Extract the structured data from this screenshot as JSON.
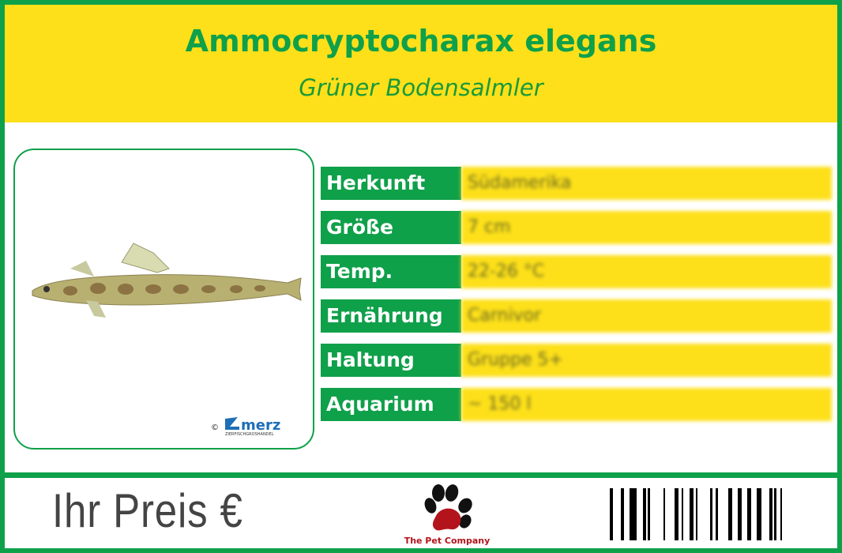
{
  "header": {
    "title": "Ammocryptocharax elegans",
    "subtitle": "Grüner Bodensalmler"
  },
  "photo": {
    "copyright": "©",
    "credit_logo": "merz",
    "credit_tagline": "ZIERFISCHGROSHANDEL"
  },
  "facts": [
    {
      "label": "Herkunft",
      "value": "Südamerika"
    },
    {
      "label": "Größe",
      "value": "7 cm"
    },
    {
      "label": "Temp.",
      "value": "22-26 °C"
    },
    {
      "label": "Ernährung",
      "value": "Carnivor"
    },
    {
      "label": "Haltung",
      "value": "Gruppe 5+"
    },
    {
      "label": "Aquarium",
      "value": "~ 150 l"
    }
  ],
  "footer": {
    "price_label": "Ihr Preis €",
    "company": "The Pet Company"
  },
  "colors": {
    "green": "#0fa04a",
    "yellow": "#fde01a",
    "paw_red": "#b3141c"
  }
}
